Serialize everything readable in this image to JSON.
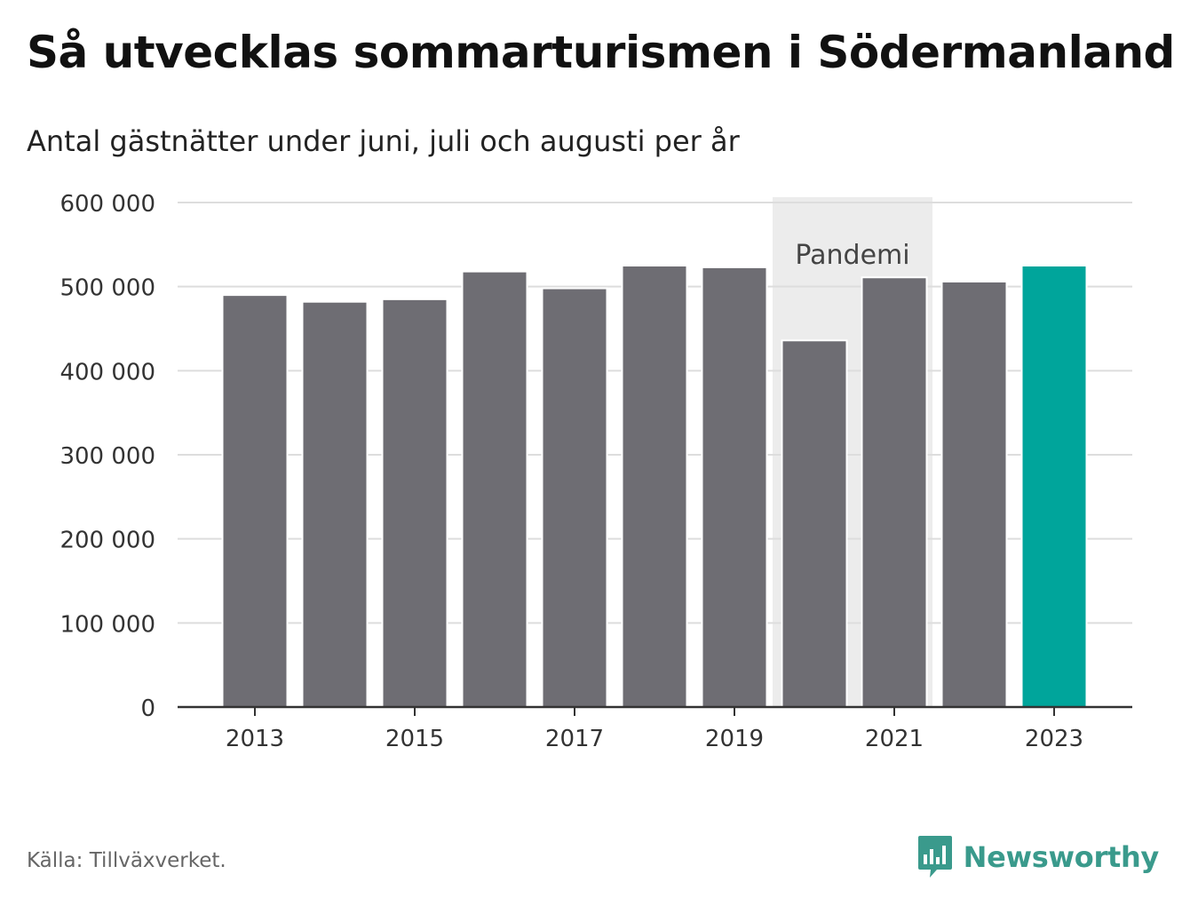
{
  "header": {
    "title": "Så utvecklas sommarturismen i Södermanland",
    "subtitle": "Antal gästnätter under juni, juli och augusti per år"
  },
  "footer": {
    "source": "Källa: Tillväxverket.",
    "brand": "Newsworthy"
  },
  "colors": {
    "bar": "#6e6d73",
    "highlight": "#00a59b",
    "band": "#ececec",
    "grid": "#dddddd",
    "axis": "#333333",
    "brand": "#3a9a8c"
  },
  "chart_data": {
    "type": "bar",
    "categories": [
      "2013",
      "2014",
      "2015",
      "2016",
      "2017",
      "2018",
      "2019",
      "2020",
      "2021",
      "2022",
      "2023"
    ],
    "values": [
      490000,
      482000,
      485000,
      518000,
      498000,
      525000,
      523000,
      436000,
      511000,
      506000,
      525000
    ],
    "highlight_category": "2023",
    "x_tick_labels": [
      "2013",
      "2015",
      "2017",
      "2019",
      "2021",
      "2023"
    ],
    "y_ticks": [
      0,
      100000,
      200000,
      300000,
      400000,
      500000,
      600000
    ],
    "y_tick_labels": [
      "0",
      "100 000",
      "200 000",
      "300 000",
      "400 000",
      "500 000",
      "600 000"
    ],
    "ylim": [
      0,
      600000
    ],
    "grid": true,
    "annotation": {
      "label": "Pandemi",
      "from": "2020",
      "to": "2021"
    }
  }
}
